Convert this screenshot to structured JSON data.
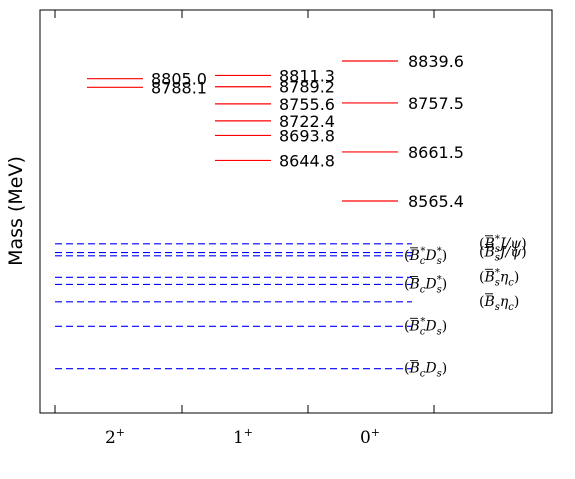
{
  "chart_data": {
    "type": "level-spectrum",
    "ylabel": "Mass (MeV)",
    "categories": [
      "2^+",
      "1^+",
      "0^+"
    ],
    "tick_labels": [
      {
        "base": "2",
        "sup": "+"
      },
      {
        "base": "1",
        "sup": "+"
      },
      {
        "base": "0",
        "sup": "+"
      }
    ],
    "levels": [
      {
        "jp": "2^+",
        "mass": 8805.0,
        "label": "8805.0"
      },
      {
        "jp": "2^+",
        "mass": 8788.1,
        "label": "8788.1"
      },
      {
        "jp": "1^+",
        "mass": 8811.3,
        "label": "8811.3"
      },
      {
        "jp": "1^+",
        "mass": 8789.2,
        "label": "8789.2"
      },
      {
        "jp": "1^+",
        "mass": 8755.6,
        "label": "8755.6"
      },
      {
        "jp": "1^+",
        "mass": 8722.4,
        "label": "8722.4"
      },
      {
        "jp": "1^+",
        "mass": 8693.8,
        "label": "8693.8"
      },
      {
        "jp": "1^+",
        "mass": 8644.8,
        "label": "8644.8"
      },
      {
        "jp": "0^+",
        "mass": 8839.6,
        "label": "8839.6"
      },
      {
        "jp": "0^+",
        "mass": 8757.5,
        "label": "8757.5"
      },
      {
        "jp": "0^+",
        "mass": 8661.5,
        "label": "8661.5"
      },
      {
        "jp": "0^+",
        "mass": 8565.4,
        "label": "8565.4"
      }
    ],
    "thresholds": [
      {
        "mass": 8481.6,
        "channel": "B_s^* J/ψ"
      },
      {
        "mass": 8464.5,
        "channel": "B_s J/ψ"
      },
      {
        "mass": 8458.0,
        "channel": "B_c^* D_s^*"
      },
      {
        "mass": 8416.0,
        "channel": "B_s^* η_c"
      },
      {
        "mass": 8402.0,
        "channel": "B_c D_s^*"
      },
      {
        "mass": 8368.0,
        "channel": "B_s η_c"
      },
      {
        "mass": 8320.0,
        "channel": "B_c^* D_s"
      },
      {
        "mass": 8237.0,
        "channel": "B_c D_s"
      }
    ],
    "threshold_color": "#0000ff",
    "level_color": "#ff0000",
    "y_range": [
      8100,
      8960
    ],
    "grid": false,
    "y_tick_labels_shown": false
  }
}
